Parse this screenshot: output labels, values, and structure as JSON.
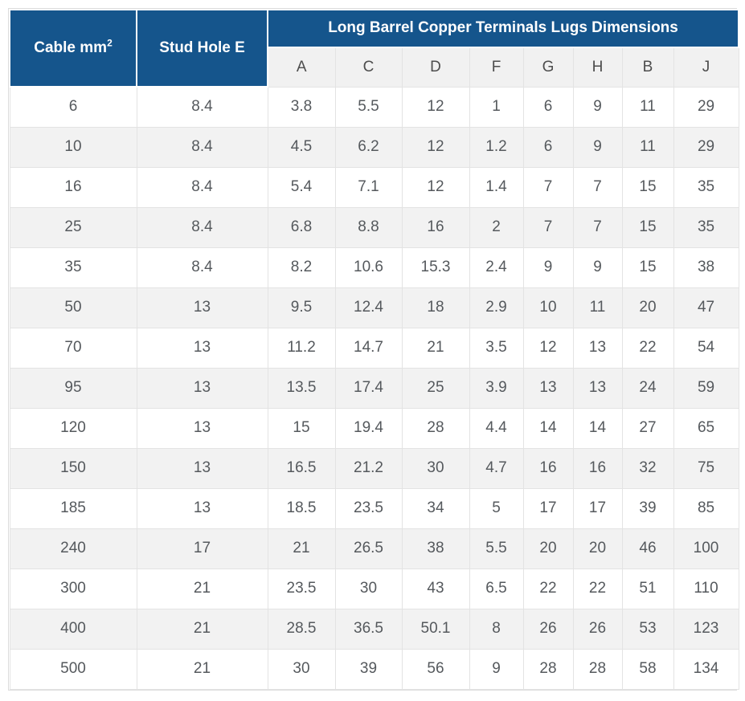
{
  "accent_color": "#15558c",
  "stripe_color": "#f2f2f2",
  "header": {
    "col1_label": "Cable mm",
    "col1_superscript": "2",
    "col2_label": "Stud Hole E",
    "group_label": "Long Barrel Copper Terminals Lugs Dimensions"
  },
  "chart_data": {
    "type": "table",
    "title": "Long Barrel Copper Terminals Lugs Dimensions",
    "columns": [
      "Cable mm2",
      "Stud Hole E",
      "A",
      "C",
      "D",
      "F",
      "G",
      "H",
      "B",
      "J"
    ],
    "sub_columns": [
      "A",
      "C",
      "D",
      "F",
      "G",
      "H",
      "B",
      "J"
    ],
    "rows": [
      [
        "6",
        "8.4",
        "3.8",
        "5.5",
        "12",
        "1",
        "6",
        "9",
        "11",
        "29"
      ],
      [
        "10",
        "8.4",
        "4.5",
        "6.2",
        "12",
        "1.2",
        "6",
        "9",
        "11",
        "29"
      ],
      [
        "16",
        "8.4",
        "5.4",
        "7.1",
        "12",
        "1.4",
        "7",
        "7",
        "15",
        "35"
      ],
      [
        "25",
        "8.4",
        "6.8",
        "8.8",
        "16",
        "2",
        "7",
        "7",
        "15",
        "35"
      ],
      [
        "35",
        "8.4",
        "8.2",
        "10.6",
        "15.3",
        "2.4",
        "9",
        "9",
        "15",
        "38"
      ],
      [
        "50",
        "13",
        "9.5",
        "12.4",
        "18",
        "2.9",
        "10",
        "11",
        "20",
        "47"
      ],
      [
        "70",
        "13",
        "11.2",
        "14.7",
        "21",
        "3.5",
        "12",
        "13",
        "22",
        "54"
      ],
      [
        "95",
        "13",
        "13.5",
        "17.4",
        "25",
        "3.9",
        "13",
        "13",
        "24",
        "59"
      ],
      [
        "120",
        "13",
        "15",
        "19.4",
        "28",
        "4.4",
        "14",
        "14",
        "27",
        "65"
      ],
      [
        "150",
        "13",
        "16.5",
        "21.2",
        "30",
        "4.7",
        "16",
        "16",
        "32",
        "75"
      ],
      [
        "185",
        "13",
        "18.5",
        "23.5",
        "34",
        "5",
        "17",
        "17",
        "39",
        "85"
      ],
      [
        "240",
        "17",
        "21",
        "26.5",
        "38",
        "5.5",
        "20",
        "20",
        "46",
        "100"
      ],
      [
        "300",
        "21",
        "23.5",
        "30",
        "43",
        "6.5",
        "22",
        "22",
        "51",
        "110"
      ],
      [
        "400",
        "21",
        "28.5",
        "36.5",
        "50.1",
        "8",
        "26",
        "26",
        "53",
        "123"
      ],
      [
        "500",
        "21",
        "30",
        "39",
        "56",
        "9",
        "28",
        "28",
        "58",
        "134"
      ]
    ]
  }
}
